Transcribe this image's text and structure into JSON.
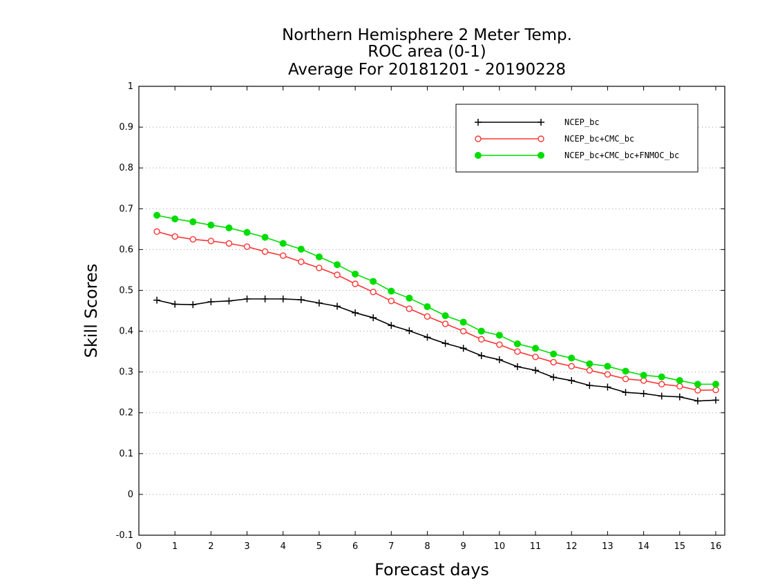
{
  "chart_data": {
    "type": "line",
    "title": [
      "Northern Hemisphere 2 Meter Temp.",
      "ROC area (0-1)",
      "Average For 20181201 - 20190228"
    ],
    "xlabel": "Forecast days",
    "ylabel": "Skill Scores",
    "xlim": [
      0,
      16.25
    ],
    "ylim": [
      -0.1,
      1
    ],
    "xticks": [
      0,
      1,
      2,
      3,
      4,
      5,
      6,
      7,
      8,
      9,
      10,
      11,
      12,
      13,
      14,
      15,
      16
    ],
    "yticks": [
      -0.1,
      0,
      0.1,
      0.2,
      0.3,
      0.4,
      0.5,
      0.6,
      0.7,
      0.8,
      0.9,
      1
    ],
    "ytick_labels": [
      "-0.1",
      "0",
      "0.1",
      "0.2",
      "0.3",
      "0.4",
      "0.5",
      "0.6",
      "0.7",
      "0.8",
      "0.9",
      "1"
    ],
    "grid": "horizontal dotted",
    "legend_position": "top-right",
    "x": [
      0.5,
      1,
      1.5,
      2,
      2.5,
      3,
      3.5,
      4,
      4.5,
      5,
      5.5,
      6,
      6.5,
      7,
      7.5,
      8,
      8.5,
      9,
      9.5,
      10,
      10.5,
      11,
      11.5,
      12,
      12.5,
      13,
      13.5,
      14,
      14.5,
      15,
      15.5,
      16
    ],
    "series": [
      {
        "name": "NCEP_bc",
        "color": "#000000",
        "marker": "plus",
        "values": [
          0.476,
          0.466,
          0.465,
          0.472,
          0.474,
          0.479,
          0.479,
          0.479,
          0.477,
          0.469,
          0.461,
          0.445,
          0.433,
          0.414,
          0.401,
          0.385,
          0.37,
          0.358,
          0.34,
          0.33,
          0.313,
          0.304,
          0.287,
          0.279,
          0.267,
          0.263,
          0.25,
          0.247,
          0.241,
          0.239,
          0.229,
          0.231
        ]
      },
      {
        "name": "NCEP_bc+CMC_bc",
        "color": "#ff3333",
        "marker": "open-circle",
        "values": [
          0.644,
          0.632,
          0.625,
          0.621,
          0.615,
          0.607,
          0.595,
          0.585,
          0.57,
          0.555,
          0.538,
          0.516,
          0.496,
          0.474,
          0.455,
          0.436,
          0.418,
          0.4,
          0.38,
          0.367,
          0.35,
          0.337,
          0.324,
          0.314,
          0.304,
          0.294,
          0.283,
          0.279,
          0.27,
          0.265,
          0.255,
          0.256
        ]
      },
      {
        "name": "NCEP_bc+CMC_bc+FNMOC_bc",
        "color": "#00dd00",
        "marker": "filled-circle",
        "values": [
          0.684,
          0.675,
          0.668,
          0.66,
          0.653,
          0.642,
          0.63,
          0.615,
          0.601,
          0.582,
          0.563,
          0.54,
          0.522,
          0.498,
          0.481,
          0.46,
          0.438,
          0.422,
          0.4,
          0.39,
          0.369,
          0.358,
          0.344,
          0.334,
          0.32,
          0.314,
          0.302,
          0.292,
          0.288,
          0.279,
          0.27,
          0.27
        ]
      }
    ]
  }
}
